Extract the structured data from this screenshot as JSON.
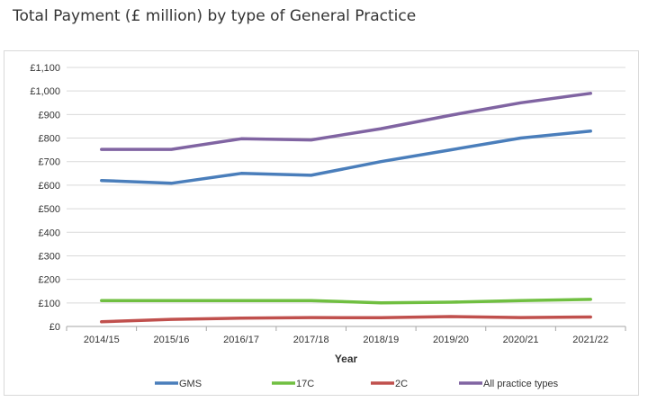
{
  "chart_data": {
    "type": "line",
    "title": "Total Payment (£ million) by type of General Practice",
    "xlabel": "Year",
    "ylabel": "",
    "categories": [
      "2014/15",
      "2015/16",
      "2016/17",
      "2017/18",
      "2018/19",
      "2019/20",
      "2020/21",
      "2021/22"
    ],
    "ylim": [
      0,
      1100
    ],
    "yticks": [
      {
        "value": 0,
        "label": "£0"
      },
      {
        "value": 100,
        "label": "£100"
      },
      {
        "value": 200,
        "label": "£200"
      },
      {
        "value": 300,
        "label": "£300"
      },
      {
        "value": 400,
        "label": "£400"
      },
      {
        "value": 500,
        "label": "£500"
      },
      {
        "value": 600,
        "label": "£600"
      },
      {
        "value": 700,
        "label": "£700"
      },
      {
        "value": 800,
        "label": "£800"
      },
      {
        "value": 900,
        "label": "£900"
      },
      {
        "value": 1000,
        "label": "£1,000"
      },
      {
        "value": 1100,
        "label": "£1,100"
      }
    ],
    "grid": true,
    "legend": "bottom",
    "series": [
      {
        "name": "GMS",
        "color": "#4a7ebb",
        "values": [
          620,
          608,
          650,
          642,
          700,
          750,
          800,
          830
        ]
      },
      {
        "name": "17C",
        "color": "#70bf41",
        "values": [
          110,
          110,
          110,
          110,
          100,
          103,
          110,
          115
        ]
      },
      {
        "name": "2C",
        "color": "#c0504d",
        "values": [
          20,
          30,
          35,
          38,
          37,
          42,
          38,
          40
        ]
      },
      {
        "name": "All practice types",
        "color": "#8064a2",
        "values": [
          752,
          752,
          797,
          792,
          840,
          897,
          950,
          990
        ]
      }
    ]
  }
}
